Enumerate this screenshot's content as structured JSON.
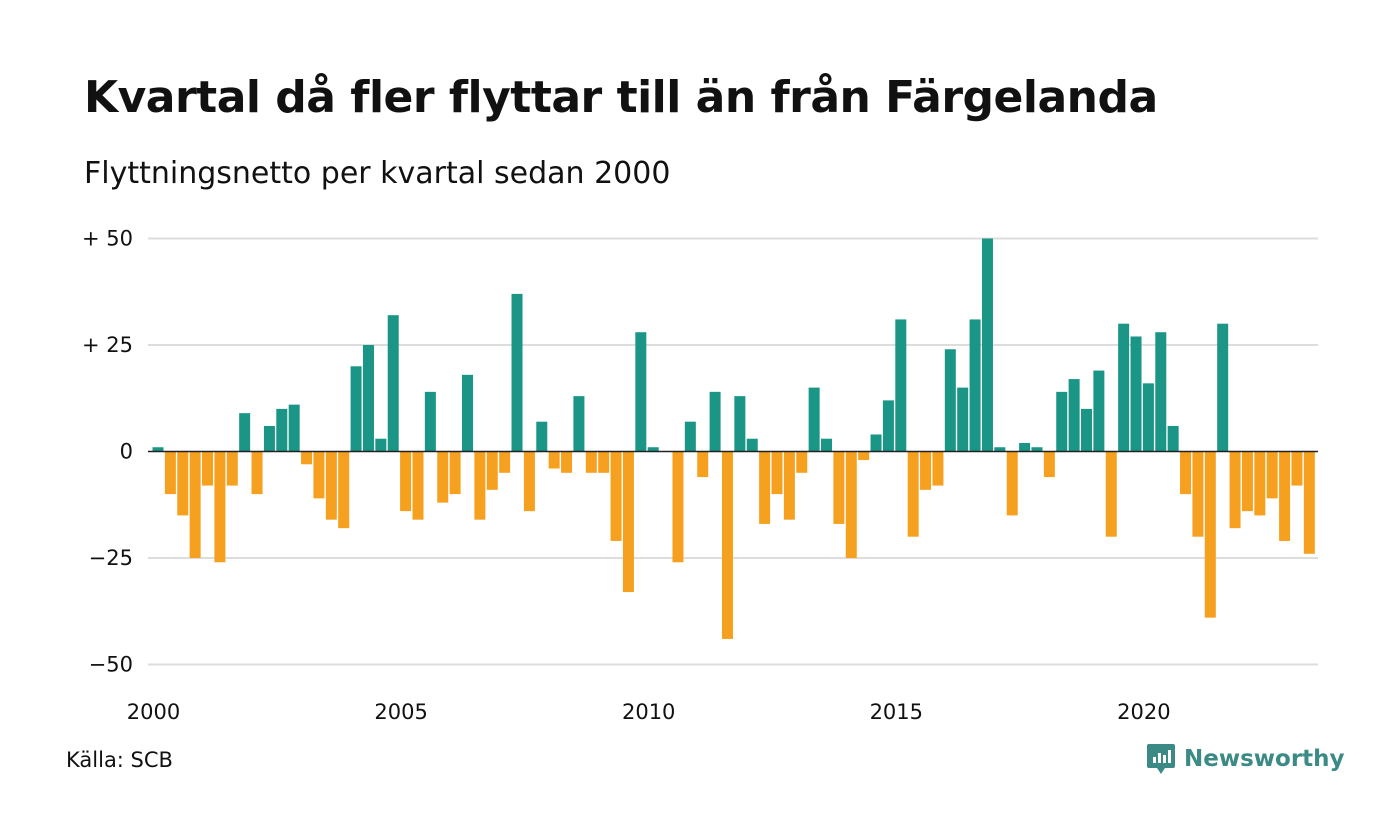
{
  "title": "Kvartal då fler flyttar till än från Färgelanda",
  "subtitle": "Flyttningsnetto per kvartal sedan 2000",
  "source": "Källa: SCB",
  "logo": {
    "text": "Newsworthy",
    "icon": "newsworthy-logo-icon"
  },
  "colors": {
    "positive": "#1b9586",
    "negative": "#f6a020",
    "grid": "#dddddd",
    "zero_line": "#222222",
    "logo": "#3b8a86"
  },
  "chart_data": {
    "type": "bar",
    "start": "2000 Q1",
    "ylim": [
      -50,
      50
    ],
    "y_ticks": [
      {
        "value": 50,
        "label": "+ 50"
      },
      {
        "value": 25,
        "label": "+ 25"
      },
      {
        "value": 0,
        "label": "0"
      },
      {
        "value": -25,
        "label": "−25"
      },
      {
        "value": -50,
        "label": "−50"
      }
    ],
    "x_ticks": [
      {
        "year": 2000,
        "label": "2000"
      },
      {
        "year": 2005,
        "label": "2005"
      },
      {
        "year": 2010,
        "label": "2010"
      },
      {
        "year": 2015,
        "label": "2015"
      },
      {
        "year": 2020,
        "label": "2020"
      }
    ],
    "grid": true,
    "legend": "none",
    "values": [
      1,
      -10,
      -15,
      -25,
      -8,
      -26,
      -8,
      9,
      -10,
      6,
      10,
      11,
      -3,
      -11,
      -16,
      -18,
      20,
      25,
      3,
      32,
      -14,
      -16,
      14,
      -12,
      -10,
      18,
      -16,
      -9,
      -5,
      37,
      -14,
      7,
      -4,
      -5,
      13,
      -5,
      -5,
      -21,
      -33,
      28,
      1,
      0,
      -26,
      7,
      -6,
      14,
      -44,
      13,
      3,
      -17,
      -10,
      -16,
      -5,
      15,
      3,
      -17,
      -25,
      -2,
      4,
      12,
      31,
      -20,
      -9,
      -8,
      24,
      15,
      31,
      50,
      1,
      -15,
      2,
      1,
      -6,
      14,
      17,
      10,
      19,
      -20,
      30,
      27,
      16,
      28,
      6,
      -10,
      -20,
      -39,
      30,
      -18,
      -14,
      -15,
      -11,
      -21,
      -8,
      -24
    ]
  }
}
